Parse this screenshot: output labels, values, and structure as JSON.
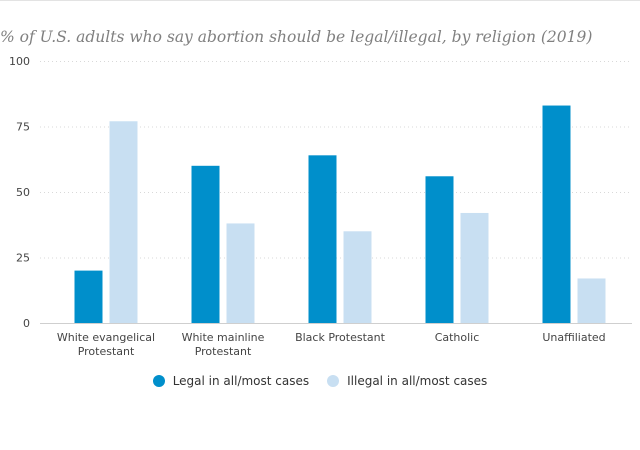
{
  "chart_data": {
    "type": "bar",
    "title": "% of U.S. adults who say abortion should be legal/illegal, by religion (2019)",
    "categories": [
      [
        "White evangelical",
        "Protestant"
      ],
      [
        "White mainline",
        "Protestant"
      ],
      [
        "Black Protestant"
      ],
      [
        "Catholic"
      ],
      [
        "Unaffiliated"
      ]
    ],
    "series": [
      {
        "name": "Legal in all/most cases",
        "color": "#008fcb",
        "values": [
          20,
          60,
          64,
          56,
          83
        ]
      },
      {
        "name": "Illegal in all/most cases",
        "color": "#c8dff2",
        "values": [
          77,
          38,
          35,
          42,
          17
        ]
      }
    ],
    "ylim": [
      0,
      100
    ],
    "yticks": [
      0,
      25,
      50,
      75,
      100
    ],
    "grid": true,
    "legend_position": "bottom"
  }
}
